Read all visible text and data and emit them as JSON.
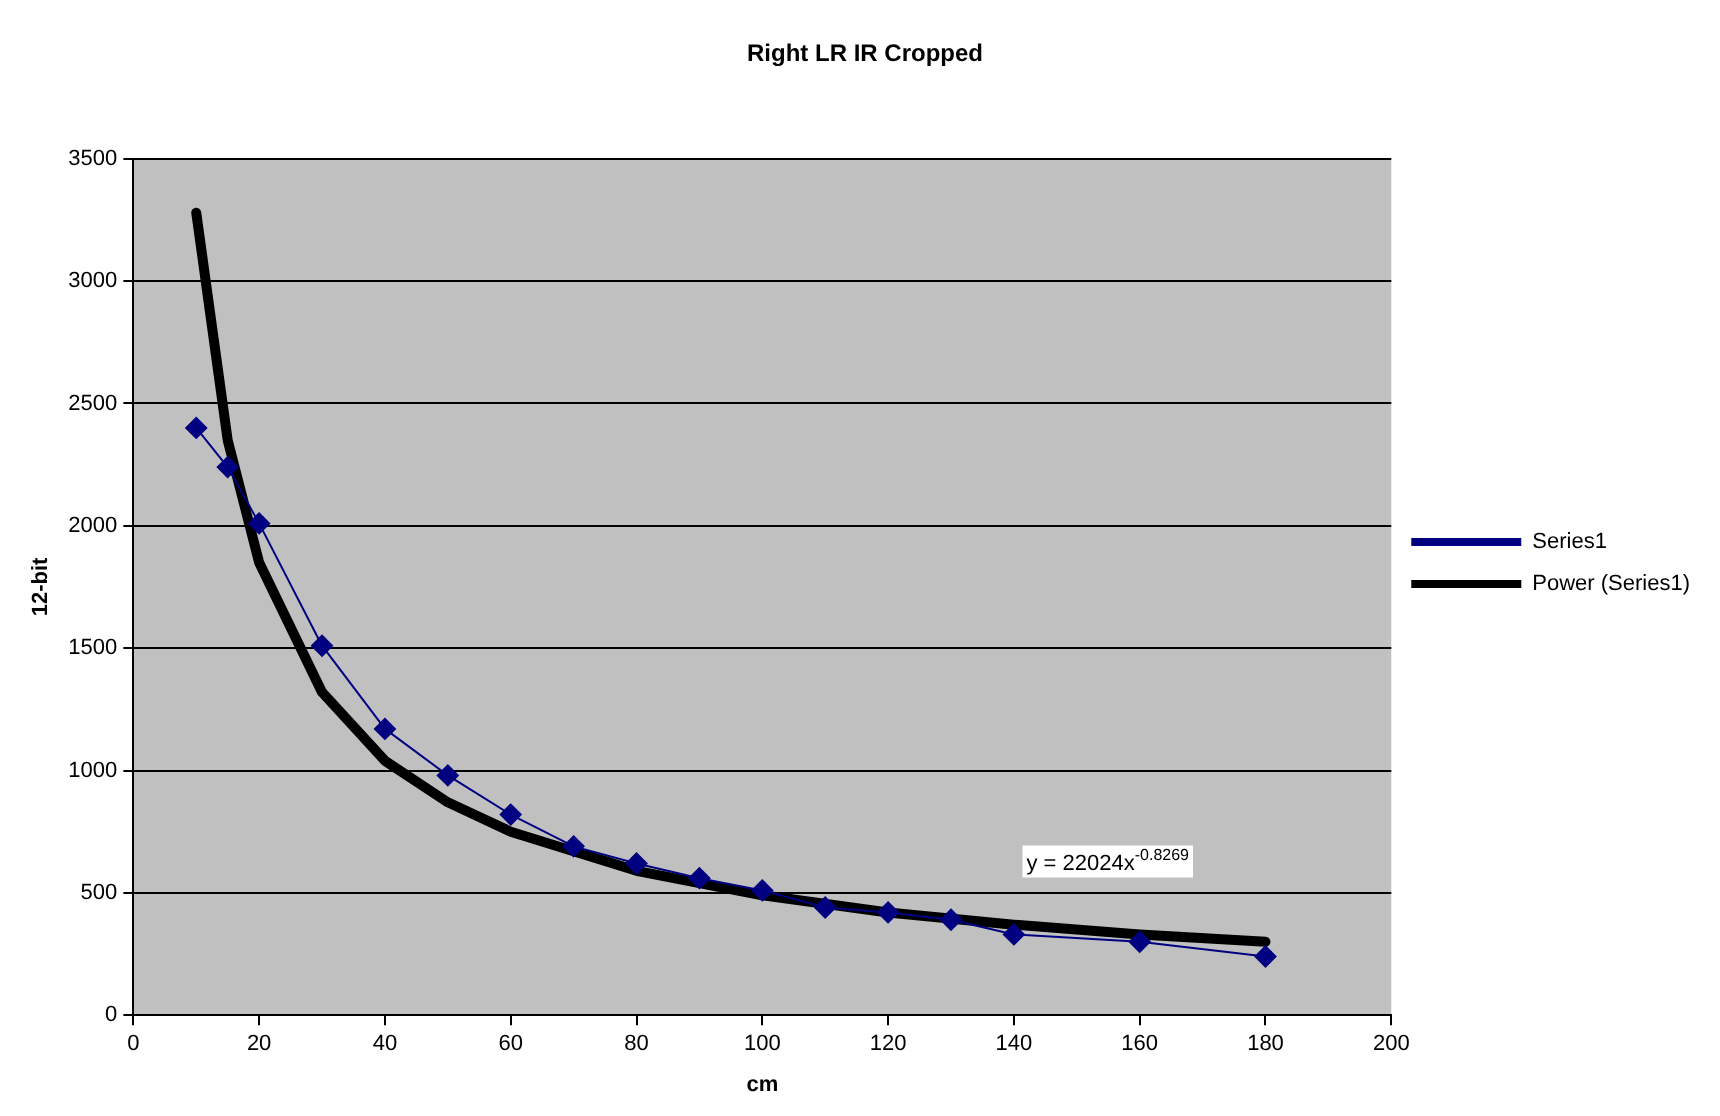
{
  "chart_data": {
    "type": "line",
    "title": "Right LR IR Cropped",
    "xlabel": "cm",
    "ylabel": "12-bit",
    "xlim": [
      0,
      200
    ],
    "xticks": [
      0,
      20,
      40,
      60,
      80,
      100,
      120,
      140,
      160,
      180,
      200
    ],
    "ylim": [
      0,
      3500
    ],
    "yticks": [
      0,
      500,
      1000,
      1500,
      2000,
      2500,
      3000,
      3500
    ],
    "grid": "y",
    "legend": "right",
    "series": [
      {
        "name": "Series1",
        "color": "#000080",
        "marker": "diamond",
        "line_style": "solid",
        "x": [
          10,
          15,
          20,
          30,
          40,
          50,
          60,
          70,
          80,
          90,
          100,
          110,
          120,
          130,
          140,
          160,
          180
        ],
        "values": [
          2400,
          2240,
          2010,
          1510,
          1170,
          980,
          820,
          690,
          620,
          560,
          510,
          440,
          420,
          390,
          330,
          300,
          240
        ]
      },
      {
        "name": "Power (Series1)",
        "type": "line",
        "color": "#000000",
        "marker": "none",
        "line_style": "solid",
        "x": [
          10,
          15,
          20,
          30,
          40,
          50,
          60,
          80,
          100,
          120,
          140,
          160,
          180
        ],
        "values": [
          3280,
          2350,
          1850,
          1320,
          1040,
          870,
          750,
          590,
          490,
          420,
          370,
          330,
          300
        ]
      }
    ],
    "annotations": [
      "y = 22024x$^{-0.8269}$"
    ]
  }
}
